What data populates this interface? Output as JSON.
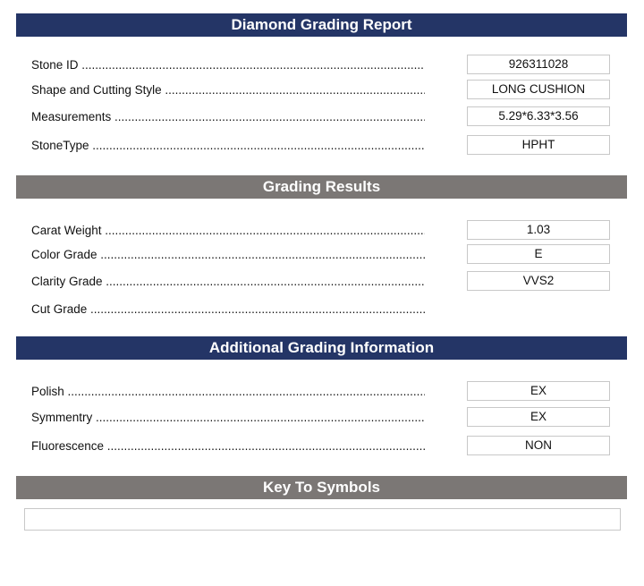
{
  "sections": {
    "report": "Diamond Grading Report",
    "results": "Grading Results",
    "additional": "Additional Grading Information",
    "key": "Key To Symbols"
  },
  "report_rows": [
    {
      "label": "Stone ID",
      "value": "926311028"
    },
    {
      "label": "Shape and Cutting Style",
      "value": "LONG CUSHION"
    },
    {
      "label": "Measurements",
      "value": "5.29*6.33*3.56"
    },
    {
      "label": "StoneType",
      "value": "HPHT"
    }
  ],
  "results_rows": [
    {
      "label": "Carat Weight",
      "value": "1.03"
    },
    {
      "label": "Color Grade",
      "value": "E"
    },
    {
      "label": "Clarity Grade",
      "value": "VVS2"
    },
    {
      "label": "Cut Grade"
    }
  ],
  "additional_rows": [
    {
      "label": "Polish",
      "value": "EX"
    },
    {
      "label": "Symmentry",
      "value": "EX"
    },
    {
      "label": "Fluorescence",
      "value": "NON"
    }
  ],
  "colors": {
    "primary_header": "#243566",
    "secondary_header": "#7b7775"
  }
}
